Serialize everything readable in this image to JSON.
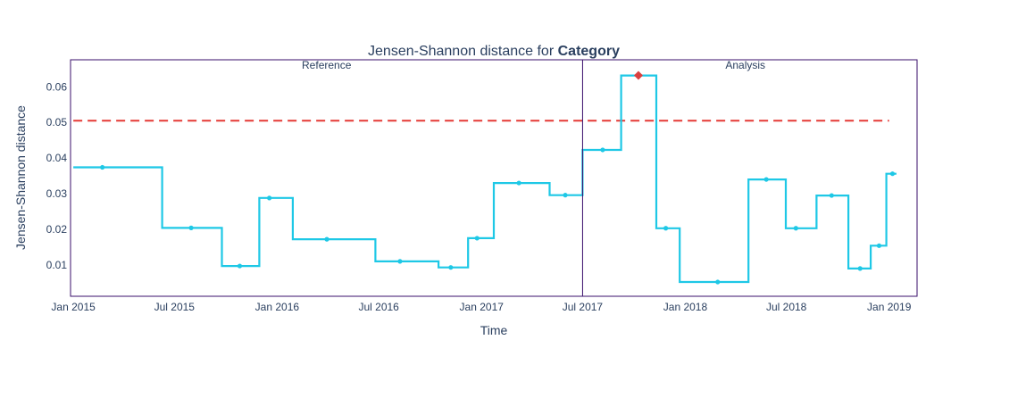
{
  "chart_data": {
    "type": "line",
    "title": "Jensen-Shannon distance for ",
    "title_bold": "Category",
    "xlabel": "Time",
    "ylabel": "Jensen-Shannon distance",
    "xlim": [
      "2014-12-27",
      "2019-02-20"
    ],
    "ylim": [
      0.0012,
      0.0676
    ],
    "y_ticks": [
      0.01,
      0.02,
      0.03,
      0.04,
      0.05,
      0.06
    ],
    "y_tick_labels": [
      "0.01",
      "0.02",
      "0.03",
      "0.04",
      "0.05",
      "0.06"
    ],
    "x_ticks": [
      "2015-01-01",
      "2015-07-01",
      "2016-01-01",
      "2016-07-01",
      "2017-01-01",
      "2017-07-01",
      "2018-01-01",
      "2018-07-01",
      "2019-01-01"
    ],
    "x_tick_labels": [
      "Jan 2015",
      "Jul 2015",
      "Jan 2016",
      "Jul 2016",
      "Jan 2017",
      "Jul 2017",
      "Jan 2018",
      "Jul 2018",
      "Jan 2019"
    ],
    "threshold": {
      "value": 0.0505,
      "start": "2015-01-01",
      "end": "2019-01-01",
      "color": "#e53935"
    },
    "divider": "2017-07-01",
    "section_labels": [
      "Reference",
      "Analysis"
    ],
    "series_color": "#1ec8e6",
    "alert_color": "#d94040",
    "frame_color": "#3a0f6b",
    "steps": [
      {
        "start": "2015-01-01",
        "end": "2015-06-09",
        "value": 0.0374,
        "marker": "2015-02-22",
        "alert": false
      },
      {
        "start": "2015-06-09",
        "end": "2015-09-24",
        "value": 0.0204,
        "marker": "2015-07-31",
        "alert": false
      },
      {
        "start": "2015-09-24",
        "end": "2015-11-30",
        "value": 0.0097,
        "marker": "2015-10-26",
        "alert": false
      },
      {
        "start": "2015-11-30",
        "end": "2016-01-29",
        "value": 0.0288,
        "marker": "2015-12-18",
        "alert": false
      },
      {
        "start": "2016-01-29",
        "end": "2016-06-25",
        "value": 0.0172,
        "marker": "2016-03-30",
        "alert": false
      },
      {
        "start": "2016-06-25",
        "end": "2016-10-16",
        "value": 0.011,
        "marker": "2016-08-08",
        "alert": false
      },
      {
        "start": "2016-10-16",
        "end": "2016-12-08",
        "value": 0.0093,
        "marker": "2016-11-07",
        "alert": false
      },
      {
        "start": "2016-12-08",
        "end": "2017-01-23",
        "value": 0.0175,
        "marker": "2016-12-24",
        "alert": false
      },
      {
        "start": "2017-01-23",
        "end": "2017-05-03",
        "value": 0.033,
        "marker": "2017-03-09",
        "alert": false
      },
      {
        "start": "2017-05-03",
        "end": "2017-07-01",
        "value": 0.0296,
        "marker": "2017-05-31",
        "alert": false
      },
      {
        "start": "2017-07-01",
        "end": "2017-09-08",
        "value": 0.0423,
        "marker": "2017-08-06",
        "alert": false
      },
      {
        "start": "2017-09-08",
        "end": "2017-11-10",
        "value": 0.0632,
        "marker": "2017-10-09",
        "alert": true
      },
      {
        "start": "2017-11-10",
        "end": "2017-12-22",
        "value": 0.0203,
        "marker": "2017-11-27",
        "alert": false
      },
      {
        "start": "2017-12-22",
        "end": "2018-04-24",
        "value": 0.0052,
        "marker": "2018-02-28",
        "alert": false
      },
      {
        "start": "2018-04-24",
        "end": "2018-06-30",
        "value": 0.034,
        "marker": "2018-05-26",
        "alert": false
      },
      {
        "start": "2018-06-30",
        "end": "2018-08-24",
        "value": 0.0203,
        "marker": "2018-07-18",
        "alert": false
      },
      {
        "start": "2018-08-24",
        "end": "2018-10-20",
        "value": 0.0295,
        "marker": "2018-09-20",
        "alert": false
      },
      {
        "start": "2018-10-20",
        "end": "2018-11-29",
        "value": 0.009,
        "marker": "2018-11-10",
        "alert": false
      },
      {
        "start": "2018-11-29",
        "end": "2018-12-27",
        "value": 0.0154,
        "marker": "2018-12-14",
        "alert": false
      },
      {
        "start": "2018-12-27",
        "end": "2019-01-14",
        "value": 0.0356,
        "marker": "2019-01-07",
        "alert": false
      }
    ]
  }
}
